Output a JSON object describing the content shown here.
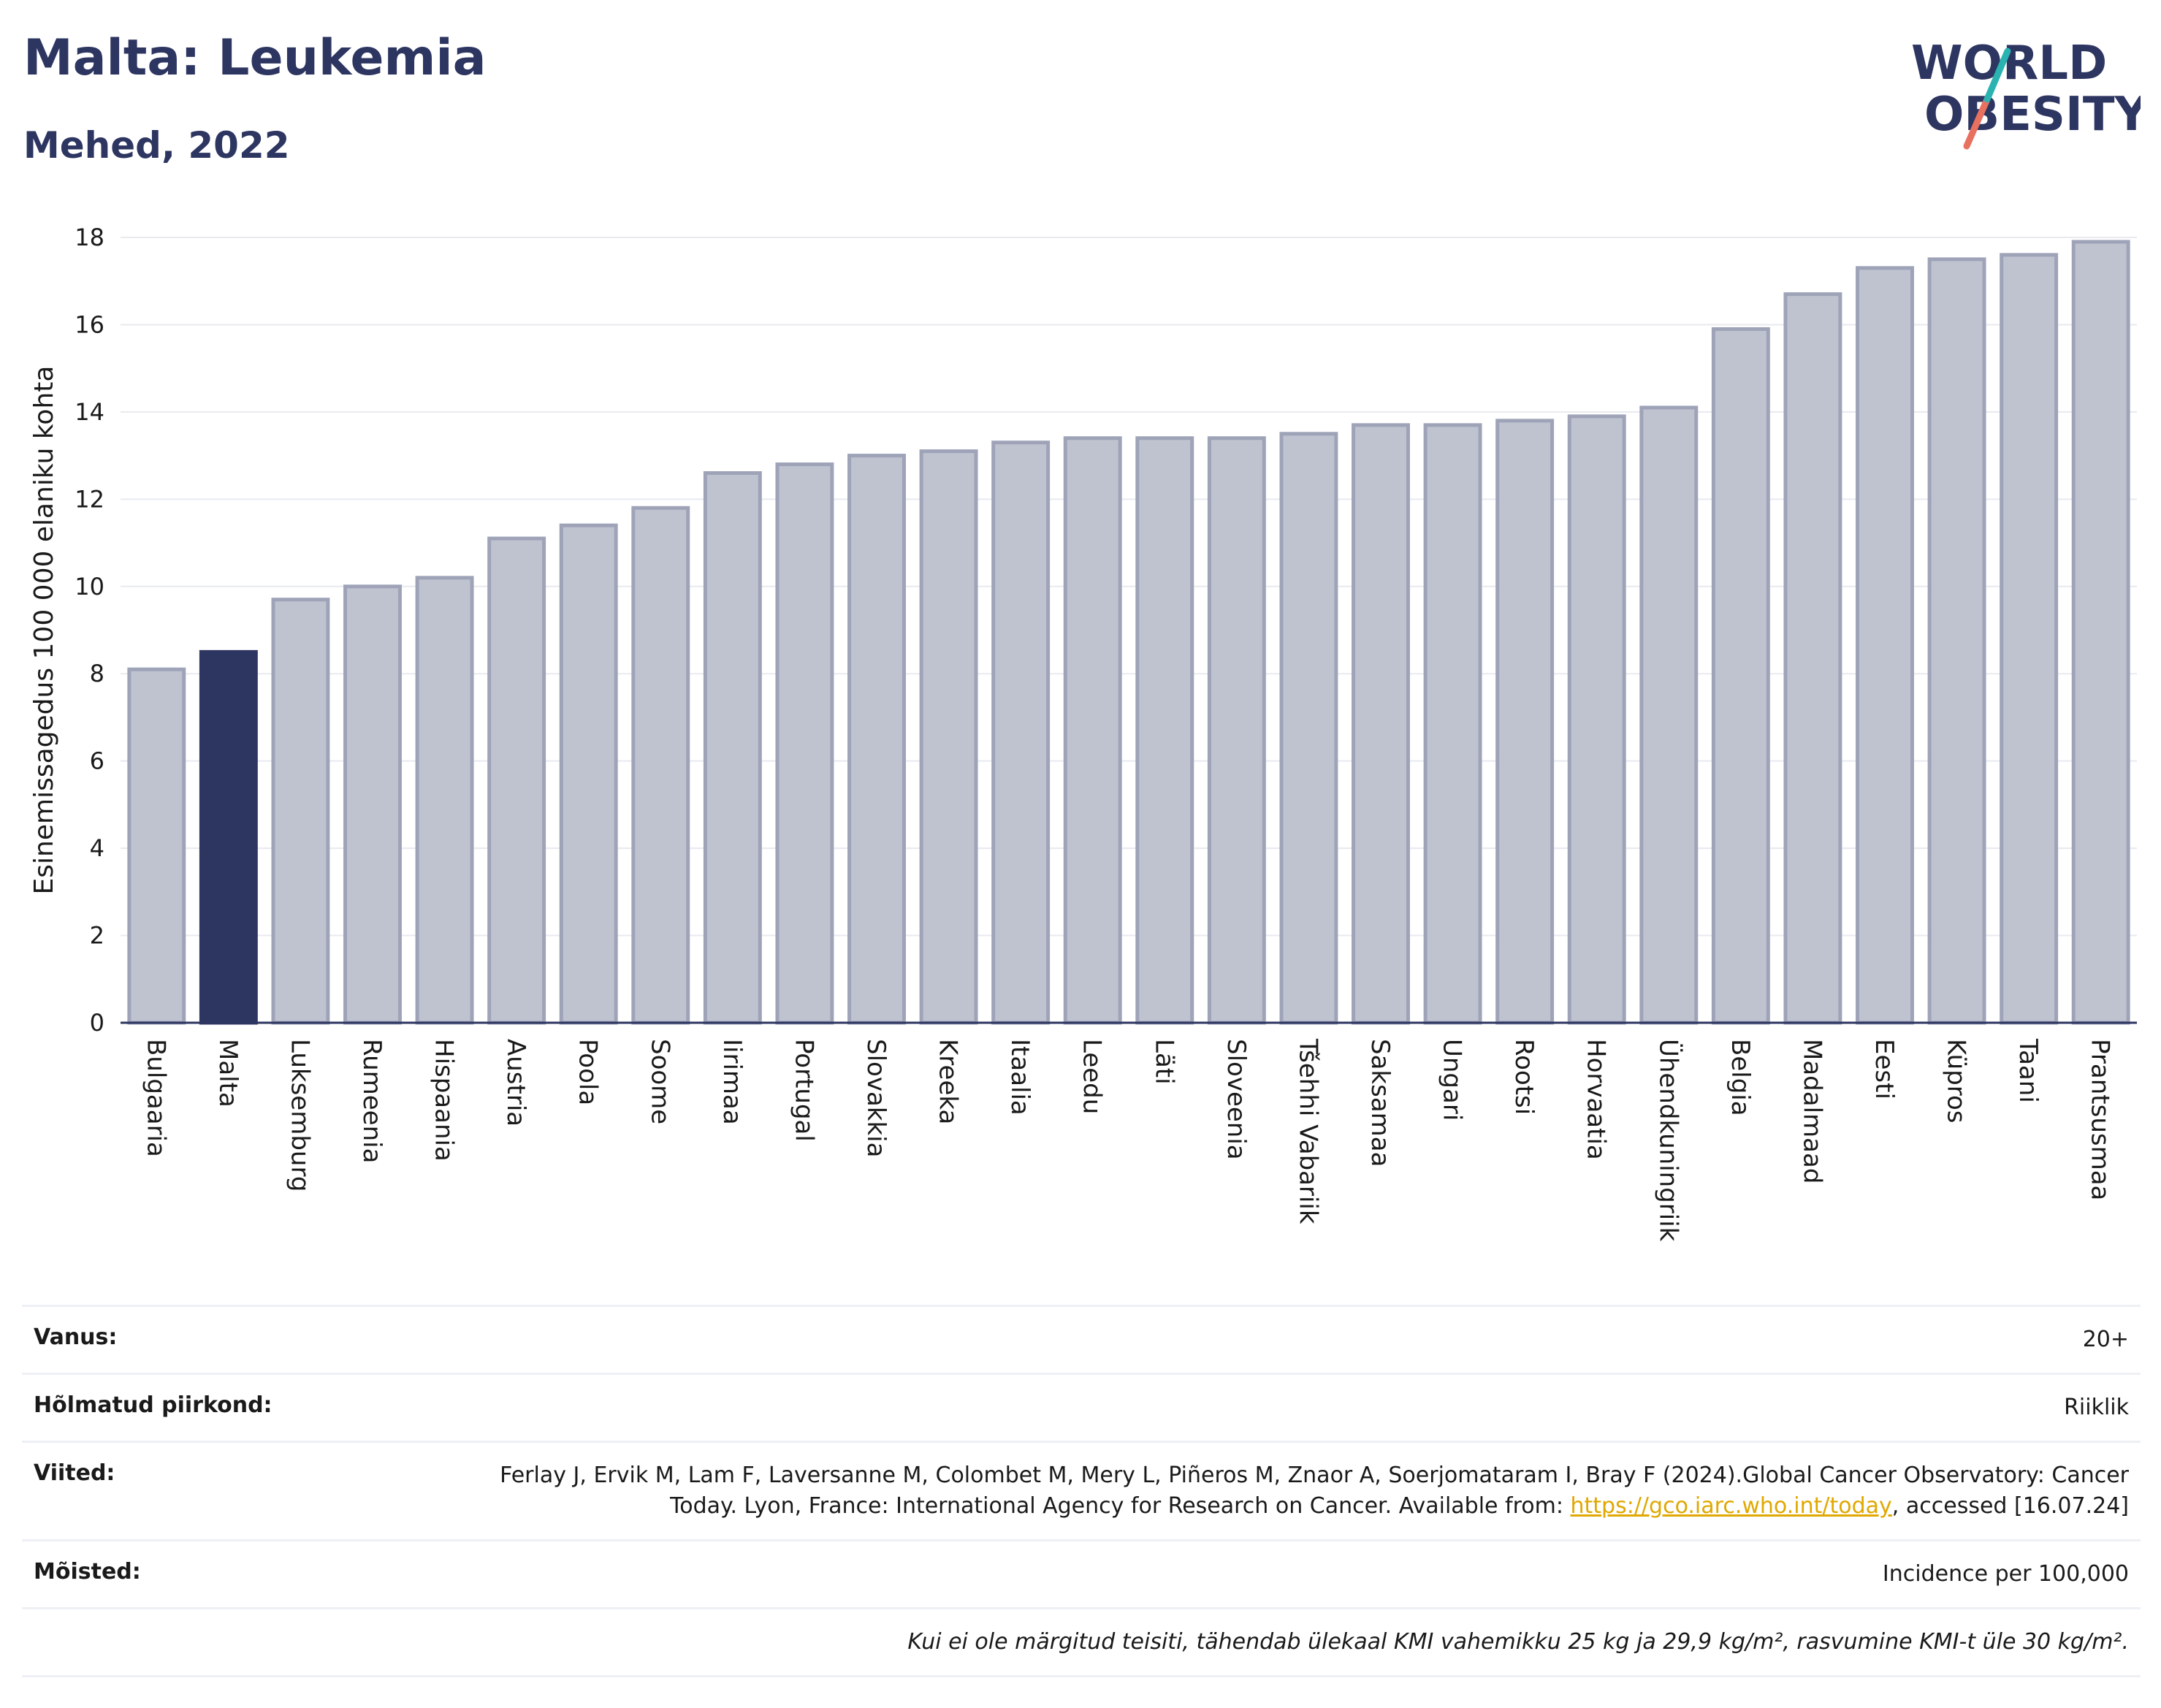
{
  "header": {
    "title": "Malta: Leukemia",
    "subtitle": "Mehed, 2022"
  },
  "logo": {
    "line1": "WORLD",
    "line2": "OBESITY"
  },
  "chart_data": {
    "type": "bar",
    "ylabel": "Esinemissagedus 100 000 elaniku kohta",
    "xlabel": "",
    "ylim": [
      0,
      18
    ],
    "yticks": [
      0,
      2,
      4,
      6,
      8,
      10,
      12,
      14,
      16,
      18
    ],
    "grid": true,
    "highlight": "Malta",
    "colors": {
      "bar": "#bfc2cf",
      "bar_stroke": "#9ea3b8",
      "highlight": "#2d3561"
    },
    "categories": [
      "Bulgaaria",
      "Malta",
      "Luksemburg",
      "Rumeenia",
      "Hispaania",
      "Austria",
      "Poola",
      "Soome",
      "Iirimaa",
      "Portugal",
      "Slovakkia",
      "Kreeka",
      "Itaalia",
      "Leedu",
      "Läti",
      "Sloveenia",
      "Tšehhi Vabariik",
      "Saksamaa",
      "Ungari",
      "Rootsi",
      "Horvaatia",
      "Ühendkuningriik",
      "Belgia",
      "Madalmaad",
      "Eesti",
      "Küpros",
      "Taani",
      "Prantsusmaa"
    ],
    "values": [
      8.1,
      8.5,
      9.7,
      10.0,
      10.2,
      11.1,
      11.4,
      11.8,
      12.6,
      12.8,
      13.0,
      13.1,
      13.3,
      13.4,
      13.4,
      13.4,
      13.5,
      13.7,
      13.7,
      13.8,
      13.9,
      14.1,
      15.9,
      16.7,
      17.3,
      17.5,
      17.6,
      17.9
    ]
  },
  "meta": {
    "age_label": "Vanus:",
    "age_value": "20+",
    "region_label": "Hõlmatud piirkond:",
    "region_value": "Riiklik",
    "refs_label": "Viited:",
    "refs_text_1": "Ferlay J, Ervik M, Lam F, Laversanne M, Colombet M, Mery L, Piñeros M, Znaor A, Soerjomataram I, Bray F (2024).Global Cancer Observatory: Cancer Today. Lyon, France: International Agency for Research on Cancer. Available from: ",
    "refs_link": "https://gco.iarc.who.int/today",
    "refs_text_2": ", accessed [16.07.24]",
    "definitions_label": "Mõisted:",
    "definitions_value": "Incidence per 100,000",
    "note": "Kui ei ole märgitud teisiti, tähendab ülekaal KMI vahemikku 25 kg ja 29,9 kg/m², rasvumine KMI-t üle 30 kg/m²."
  }
}
